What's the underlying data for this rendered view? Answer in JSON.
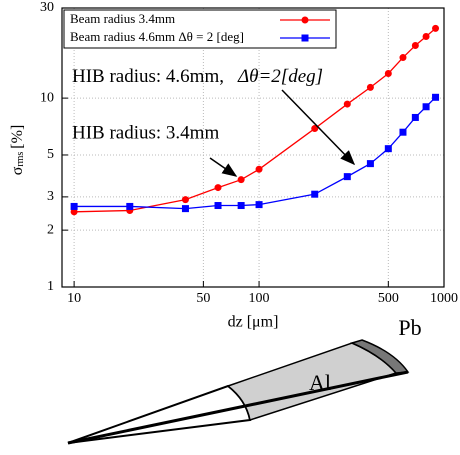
{
  "chart_data": {
    "type": "line",
    "x_label": "dz [μm]",
    "y_label": {
      "symbol": "σ",
      "subscript": "rms",
      "unit": "[%]"
    },
    "x": [
      10,
      20,
      40,
      60,
      80,
      100,
      200,
      300,
      400,
      500,
      600,
      700,
      800,
      900
    ],
    "series": [
      {
        "name": "Beam radius  3.4mm",
        "color": "#ff0000",
        "marker": "circle",
        "values": [
          2.5,
          2.54,
          2.9,
          3.36,
          3.7,
          4.2,
          6.9,
          9.3,
          11.4,
          13.5,
          16.4,
          19,
          21.2,
          23.4
        ]
      },
      {
        "name": "Beam radius  4.6mm  Δθ = 2 [deg]",
        "color": "#0000ff",
        "marker": "square",
        "values": [
          2.67,
          2.67,
          2.6,
          2.7,
          2.7,
          2.73,
          3.1,
          3.84,
          4.5,
          5.4,
          6.6,
          7.9,
          9.0,
          10.1
        ]
      }
    ],
    "xlim": [
      8.6,
      1000
    ],
    "ylim": [
      1,
      30
    ],
    "xticks": [
      10,
      50,
      100,
      500,
      1000
    ],
    "yticks": [
      1,
      2,
      3,
      5,
      10,
      30
    ],
    "log_x": true,
    "log_y": true,
    "grid": true,
    "legend": "upper-left",
    "annotations": [
      {
        "text": "HIB radius: 4.6mm,",
        "math": "Δθ=2[deg]"
      },
      {
        "text": "HIB radius: 3.4mm"
      }
    ]
  },
  "diagram": {
    "labels": [
      "Al",
      "Pb"
    ]
  }
}
